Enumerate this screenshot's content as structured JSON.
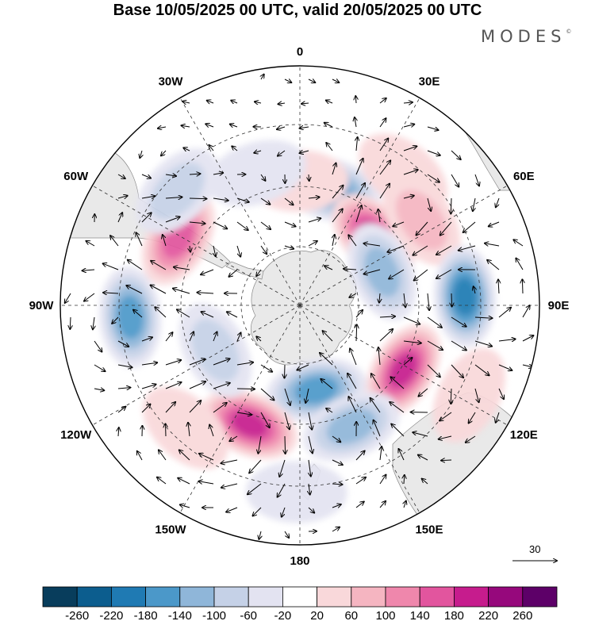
{
  "title": "Base 10/05/2025 00 UTC, valid 20/05/2025 00 UTC",
  "brand": "MODES",
  "brand_mark": "©",
  "map": {
    "projection": "south-polar-stereographic",
    "lon_labels": [
      {
        "text": "0",
        "lon": 0
      },
      {
        "text": "30E",
        "lon": 30
      },
      {
        "text": "60E",
        "lon": 60
      },
      {
        "text": "90E",
        "lon": 90
      },
      {
        "text": "120E",
        "lon": 120
      },
      {
        "text": "150E",
        "lon": 150
      },
      {
        "text": "180",
        "lon": 180
      },
      {
        "text": "150W",
        "lon": -150
      },
      {
        "text": "120W",
        "lon": -120
      },
      {
        "text": "90W",
        "lon": -90
      },
      {
        "text": "60W",
        "lon": -60
      },
      {
        "text": "30W",
        "lon": -30
      }
    ],
    "wind_reference": "30",
    "land_color": "#e9e9e9",
    "anomalies": [
      {
        "lon": 15,
        "r": 0.5,
        "value": -170
      },
      {
        "lon": -1,
        "r": 0.52,
        "value": 45
      },
      {
        "lon": 47,
        "r": 0.42,
        "value": 210
      },
      {
        "lon": 38,
        "r": 0.7,
        "value": 60
      },
      {
        "lon": 55,
        "r": 0.62,
        "value": 90
      },
      {
        "lon": 68,
        "r": 0.37,
        "value": -150
      },
      {
        "lon": 87,
        "r": 0.69,
        "value": -210
      },
      {
        "lon": 122,
        "r": 0.51,
        "value": 230
      },
      {
        "lon": 118,
        "r": 0.8,
        "value": 45
      },
      {
        "lon": 169,
        "r": 0.36,
        "value": -160
      },
      {
        "lon": 157,
        "r": 0.55,
        "value": -120
      },
      {
        "lon": -157,
        "r": 0.54,
        "value": 200
      },
      {
        "lon": -137,
        "r": 0.7,
        "value": 50
      },
      {
        "lon": -118,
        "r": 0.4,
        "value": -100
      },
      {
        "lon": -94,
        "r": 0.71,
        "value": -160
      },
      {
        "lon": -61,
        "r": 0.58,
        "value": 180
      },
      {
        "lon": -47,
        "r": 0.7,
        "value": -110
      },
      {
        "lon": -18,
        "r": 0.58,
        "value": -40
      },
      {
        "lon": -179,
        "r": 0.78,
        "value": -60
      }
    ]
  },
  "colorbar": {
    "colors": [
      "#083d5c",
      "#0c5d8e",
      "#1f7ab3",
      "#4b98c9",
      "#8fb6d9",
      "#c5d1e7",
      "#e3e3f1",
      "#ffffff",
      "#f9d8da",
      "#f5b5c1",
      "#ef87ac",
      "#e2559e",
      "#c61c8d",
      "#96087c",
      "#5d0068"
    ],
    "labels": [
      "-260",
      "-220",
      "-180",
      "-140",
      "-100",
      "-60",
      "-20",
      "20",
      "60",
      "100",
      "140",
      "180",
      "220",
      "260"
    ]
  }
}
